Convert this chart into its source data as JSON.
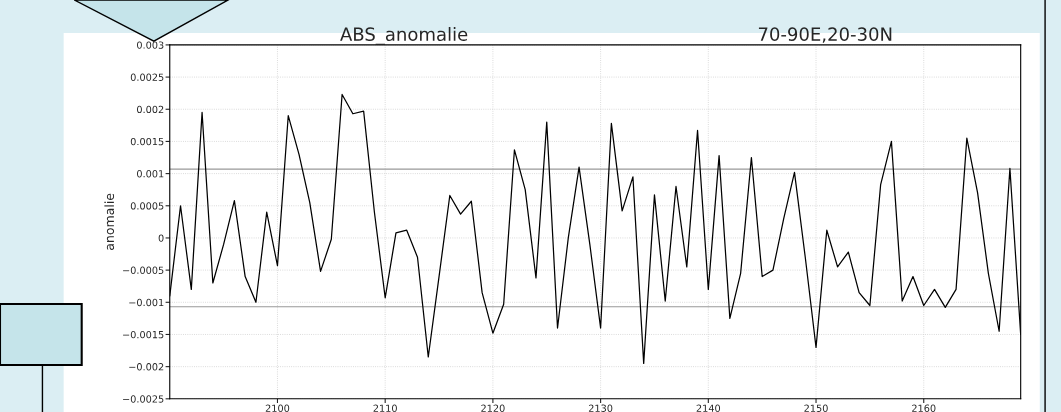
{
  "chart_data": {
    "type": "line",
    "title": "ABS_anomalie",
    "subtitle": "70-90E,20-30N",
    "ylabel": "anomalie",
    "x": [
      2090,
      2091,
      2092,
      2093,
      2094,
      2095,
      2096,
      2097,
      2098,
      2099,
      2100,
      2101,
      2102,
      2103,
      2104,
      2105,
      2106,
      2107,
      2108,
      2109,
      2110,
      2111,
      2112,
      2113,
      2114,
      2115,
      2116,
      2117,
      2118,
      2119,
      2120,
      2121,
      2122,
      2123,
      2124,
      2125,
      2126,
      2127,
      2128,
      2129,
      2130,
      2131,
      2132,
      2133,
      2134,
      2135,
      2136,
      2137,
      2138,
      2139,
      2140,
      2141,
      2142,
      2143,
      2144,
      2145,
      2146,
      2147,
      2148,
      2149,
      2150,
      2151,
      2152,
      2153,
      2154,
      2155,
      2156,
      2157,
      2158,
      2159,
      2160,
      2161,
      2162,
      2163,
      2164,
      2165,
      2166,
      2167,
      2168,
      2169
    ],
    "series": [
      {
        "color": "#000000",
        "values": [
          -0.0009,
          0.0005,
          -0.0008,
          0.00195,
          -0.0007,
          -0.0001,
          0.00058,
          -0.0006,
          -0.001,
          0.0004,
          -0.00043,
          0.0019,
          0.0013,
          0.00055,
          -0.00052,
          -2e-05,
          0.00223,
          0.00193,
          0.00197,
          0.0004,
          -0.00093,
          8e-05,
          0.00012,
          -0.0003,
          -0.00185,
          -0.0006,
          0.00066,
          0.00037,
          0.00057,
          -0.00085,
          -0.00148,
          -0.00103,
          0.00137,
          0.00075,
          -0.00062,
          0.0018,
          -0.0014,
          0.0,
          0.0011,
          -0.0001,
          -0.0014,
          0.00178,
          0.00042,
          0.00095,
          -0.00195,
          0.00067,
          -0.00098,
          0.0008,
          -0.00045,
          0.00167,
          -0.0008,
          0.00128,
          -0.00125,
          -0.00055,
          0.00125,
          -0.0006,
          -0.0005,
          0.0003,
          0.00102,
          -0.0003,
          -0.0017,
          0.00012,
          -0.00045,
          -0.00022,
          -0.00085,
          -0.00105,
          0.00083,
          0.0015,
          -0.00098,
          -0.0006,
          -0.00105,
          -0.0008,
          -0.00108,
          -0.0008,
          0.00155,
          0.0007,
          -0.00055,
          -0.00145,
          0.00108,
          -0.0015
        ]
      }
    ],
    "xlim": [
      2090,
      2169
    ],
    "xticks": [
      2100,
      2110,
      2120,
      2130,
      2140,
      2150,
      2160
    ],
    "ylim": [
      -0.0025,
      0.003
    ],
    "yticks": [
      {
        "value": -0.0025,
        "label": "−0.0025"
      },
      {
        "value": -0.002,
        "label": "−0.002"
      },
      {
        "value": -0.0015,
        "label": "−0.0015"
      },
      {
        "value": -0.001,
        "label": "−0.001"
      },
      {
        "value": -0.0005,
        "label": "−0.0005"
      },
      0,
      0.0005,
      0.001,
      0.0015,
      0.002,
      0.0025,
      0.003
    ],
    "ref_lines": [
      {
        "axis": "y",
        "value": 0.00107,
        "color": "#999999"
      },
      {
        "axis": "y",
        "value": -0.00107,
        "color": "#999999"
      }
    ],
    "grid": true,
    "marker": "none",
    "line_style": "solid"
  }
}
